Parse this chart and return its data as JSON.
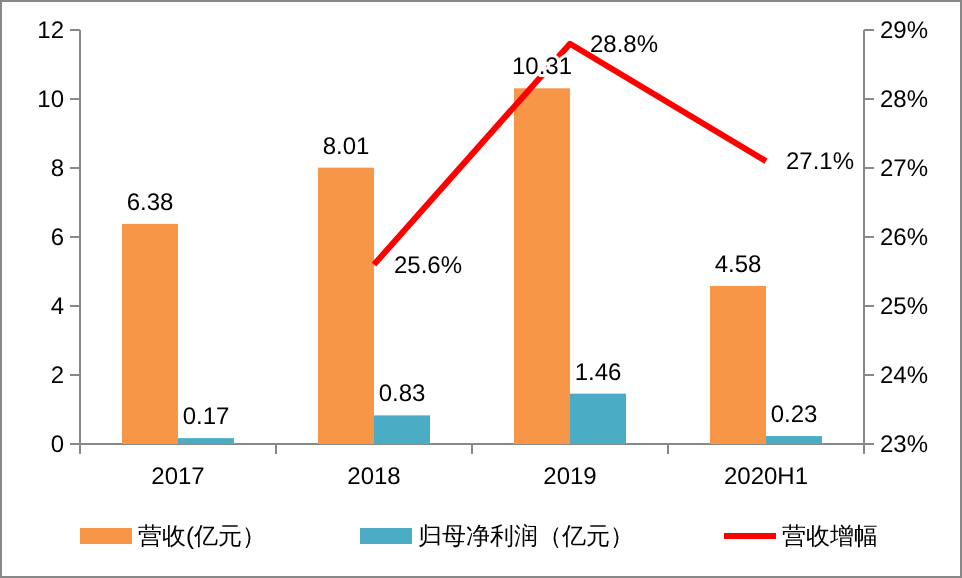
{
  "chart_data": {
    "type": "bar",
    "categories": [
      "2017",
      "2018",
      "2019",
      "2020H1"
    ],
    "series": [
      {
        "name": "营收(亿元）",
        "color": "#f79646",
        "values": [
          6.38,
          8.01,
          10.31,
          4.58
        ]
      },
      {
        "name": "归母净利润（亿元）",
        "color": "#4bacc6",
        "values": [
          0.17,
          0.83,
          1.46,
          0.23
        ]
      },
      {
        "name": "营收增幅",
        "type": "line",
        "axis": "y2",
        "color": "#ff0000",
        "values": [
          null,
          25.6,
          28.8,
          27.1
        ],
        "value_labels": [
          null,
          "25.6%",
          "28.8%",
          "27.1%"
        ]
      }
    ],
    "ylim": [
      0,
      12
    ],
    "yticks": [
      0,
      2,
      4,
      6,
      8,
      10,
      12
    ],
    "y2lim": [
      23,
      29
    ],
    "y2ticks": [
      {
        "value": 23,
        "label": "23%"
      },
      {
        "value": 24,
        "label": "24%"
      },
      {
        "value": 25,
        "label": "25%"
      },
      {
        "value": 26,
        "label": "26%"
      },
      {
        "value": 27,
        "label": "27%"
      },
      {
        "value": 28,
        "label": "28%"
      },
      {
        "value": 29,
        "label": "29%"
      }
    ],
    "data_labels": true,
    "legend": "bottom",
    "grid": false,
    "marker": "none",
    "line_style": "solid"
  }
}
